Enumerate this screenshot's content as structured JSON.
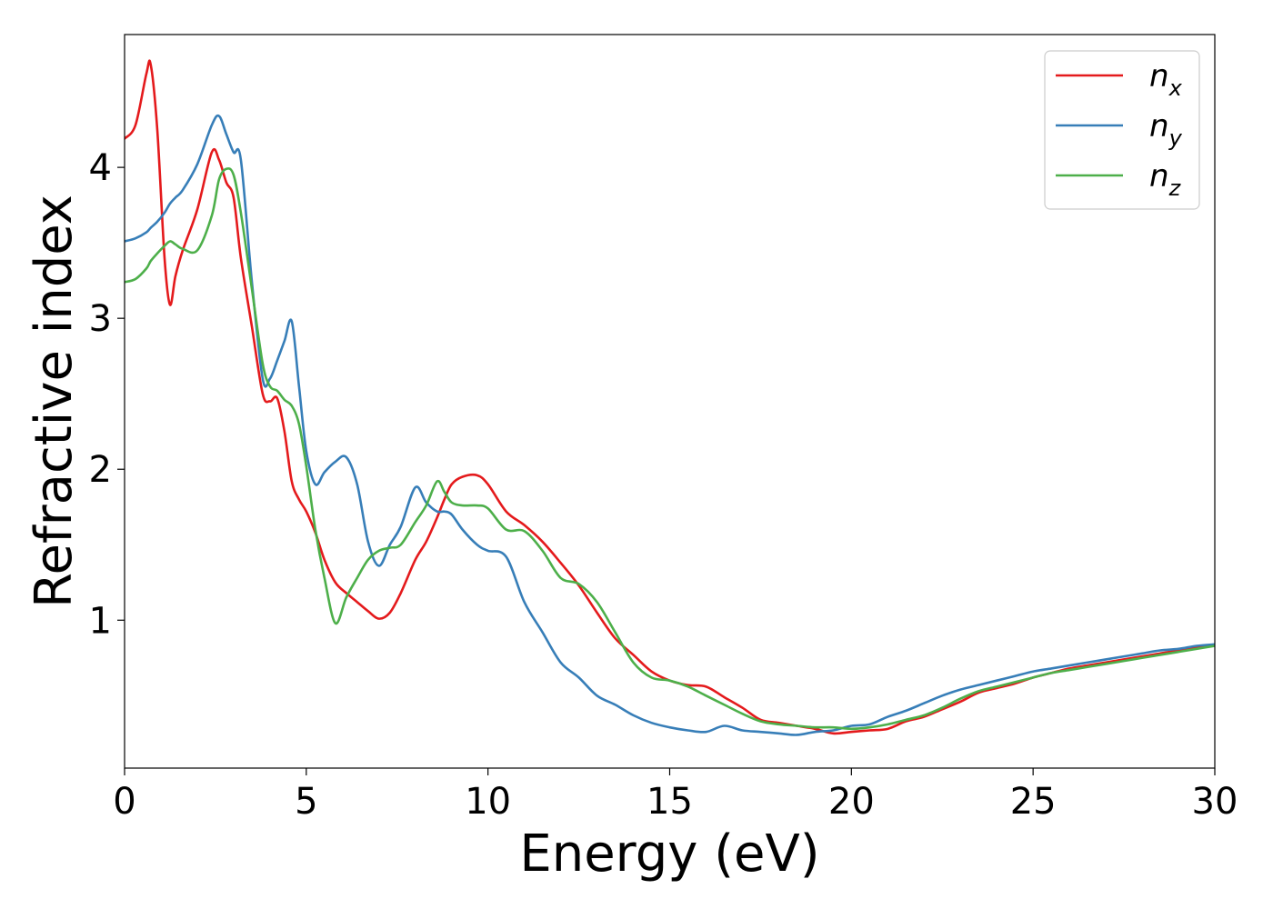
{
  "chart_data": {
    "type": "line",
    "title": "",
    "xlabel": "Energy (eV)",
    "ylabel": "Refractive index",
    "xlim": [
      0,
      30
    ],
    "ylim": [
      0.02,
      4.88
    ],
    "xticks": [
      0,
      5,
      10,
      15,
      20,
      25,
      30
    ],
    "yticks": [
      1,
      2,
      3,
      4
    ],
    "grid": false,
    "legend_position": "top-right",
    "x": [
      0,
      0.3,
      0.6,
      0.72,
      0.9,
      1.1,
      1.25,
      1.4,
      1.6,
      2.0,
      2.4,
      2.6,
      2.8,
      3.0,
      3.2,
      3.5,
      3.8,
      4.0,
      4.2,
      4.4,
      4.6,
      4.8,
      5.0,
      5.25,
      5.5,
      5.8,
      6.1,
      6.4,
      6.7,
      7.0,
      7.3,
      7.6,
      8.0,
      8.3,
      8.6,
      8.8,
      9.0,
      9.3,
      9.7,
      10.0,
      10.5,
      11.0,
      11.5,
      12.0,
      12.5,
      13.0,
      13.5,
      14.0,
      14.5,
      15.0,
      15.5,
      16.0,
      16.5,
      17.0,
      17.5,
      18.0,
      18.5,
      19.0,
      19.5,
      20.0,
      20.5,
      21.0,
      21.5,
      22.0,
      22.5,
      23.0,
      23.5,
      24.0,
      24.5,
      25.0,
      25.5,
      26.0,
      26.5,
      27.0,
      27.5,
      28.0,
      28.5,
      29.0,
      29.5,
      30.0
    ],
    "series": [
      {
        "name": "n_x",
        "label_main": "n",
        "label_sub": "x",
        "color": "#e41a1c",
        "values": [
          4.19,
          4.28,
          4.62,
          4.68,
          4.25,
          3.4,
          3.09,
          3.28,
          3.45,
          3.72,
          4.1,
          4.05,
          3.9,
          3.8,
          3.4,
          2.95,
          2.5,
          2.45,
          2.47,
          2.25,
          1.92,
          1.8,
          1.72,
          1.58,
          1.4,
          1.25,
          1.18,
          1.12,
          1.06,
          1.01,
          1.05,
          1.18,
          1.4,
          1.52,
          1.68,
          1.8,
          1.9,
          1.95,
          1.96,
          1.9,
          1.72,
          1.63,
          1.52,
          1.38,
          1.23,
          1.05,
          0.88,
          0.77,
          0.66,
          0.6,
          0.57,
          0.56,
          0.49,
          0.42,
          0.34,
          0.32,
          0.3,
          0.28,
          0.25,
          0.26,
          0.27,
          0.28,
          0.33,
          0.36,
          0.41,
          0.46,
          0.52,
          0.55,
          0.58,
          0.62,
          0.65,
          0.68,
          0.7,
          0.72,
          0.74,
          0.76,
          0.78,
          0.8,
          0.82,
          0.83
        ]
      },
      {
        "name": "n_y",
        "label_main": "n",
        "label_sub": "y",
        "color": "#377eb8",
        "values": [
          3.51,
          3.53,
          3.57,
          3.6,
          3.64,
          3.7,
          3.76,
          3.8,
          3.85,
          4.02,
          4.28,
          4.34,
          4.22,
          4.1,
          4.05,
          3.25,
          2.6,
          2.6,
          2.72,
          2.85,
          2.98,
          2.55,
          2.12,
          1.9,
          1.98,
          2.05,
          2.08,
          1.9,
          1.52,
          1.36,
          1.5,
          1.62,
          1.88,
          1.78,
          1.72,
          1.72,
          1.7,
          1.6,
          1.5,
          1.46,
          1.42,
          1.12,
          0.92,
          0.72,
          0.62,
          0.5,
          0.44,
          0.37,
          0.32,
          0.29,
          0.27,
          0.26,
          0.3,
          0.27,
          0.26,
          0.25,
          0.24,
          0.26,
          0.27,
          0.3,
          0.31,
          0.36,
          0.4,
          0.45,
          0.5,
          0.54,
          0.57,
          0.6,
          0.63,
          0.66,
          0.68,
          0.7,
          0.72,
          0.74,
          0.76,
          0.78,
          0.8,
          0.81,
          0.83,
          0.84
        ]
      },
      {
        "name": "n_z",
        "label_main": "n",
        "label_sub": "z",
        "color": "#4daf4a",
        "values": [
          3.24,
          3.26,
          3.33,
          3.38,
          3.43,
          3.48,
          3.51,
          3.49,
          3.46,
          3.45,
          3.68,
          3.92,
          3.99,
          3.95,
          3.7,
          3.2,
          2.7,
          2.55,
          2.52,
          2.46,
          2.42,
          2.3,
          2.02,
          1.6,
          1.28,
          0.98,
          1.15,
          1.28,
          1.4,
          1.46,
          1.48,
          1.5,
          1.65,
          1.76,
          1.92,
          1.85,
          1.78,
          1.76,
          1.76,
          1.74,
          1.6,
          1.59,
          1.46,
          1.28,
          1.24,
          1.12,
          0.92,
          0.72,
          0.62,
          0.6,
          0.56,
          0.5,
          0.44,
          0.38,
          0.33,
          0.31,
          0.3,
          0.29,
          0.29,
          0.28,
          0.29,
          0.31,
          0.34,
          0.37,
          0.42,
          0.48,
          0.53,
          0.56,
          0.59,
          0.62,
          0.65,
          0.67,
          0.69,
          0.71,
          0.73,
          0.75,
          0.77,
          0.79,
          0.81,
          0.83
        ]
      }
    ]
  }
}
